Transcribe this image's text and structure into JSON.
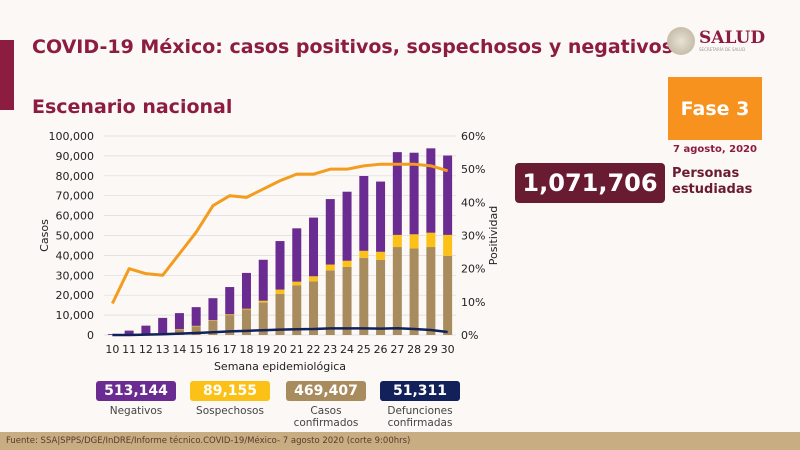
{
  "header": {
    "title": "COVID-19 México: casos positivos, sospechosos y negativos",
    "subtitle": "Escenario nacional"
  },
  "logo": {
    "text": "SALUD",
    "subtext": "SECRETARÍA DE SALUD"
  },
  "phase": {
    "label": "Fase 3",
    "date": "7 agosto, 2020",
    "color": "#f7921e"
  },
  "studied": {
    "value": "1,071,706",
    "label_line1": "Personas",
    "label_line2": "estudiadas"
  },
  "stats": [
    {
      "value": "513,144",
      "label": "Negativos",
      "color": "#6b2c91"
    },
    {
      "value": "89,155",
      "label": "Sospechosos",
      "color": "#fcc116"
    },
    {
      "value": "469,407",
      "label": "Casos confirmados",
      "color": "#a88c5e"
    },
    {
      "value": "51,311",
      "label": "Defunciones confirmadas",
      "color": "#13215a"
    }
  ],
  "footer": "Fuente: SSA|SPPS/DGE/InDRE/Informe técnico.COVID-19/México- 7 agosto 2020 (corte 9:00hrs)",
  "chart_data": {
    "type": "bar",
    "stacked": true,
    "xlabel": "Semana epidemiológica",
    "ylabel": "Casos",
    "y2label": "Positividad",
    "ylim": [
      0,
      100000
    ],
    "y2lim": [
      0,
      60
    ],
    "yticks": [
      "0",
      "10,000",
      "20,000",
      "30,000",
      "40,000",
      "50,000",
      "60,000",
      "70,000",
      "80,000",
      "90,000",
      "100,000"
    ],
    "y2ticks": [
      "0%",
      "10%",
      "20%",
      "30%",
      "40%",
      "50%",
      "60%"
    ],
    "grid": true,
    "categories": [
      "10",
      "11",
      "12",
      "13",
      "14",
      "15",
      "16",
      "17",
      "18",
      "19",
      "20",
      "21",
      "22",
      "23",
      "24",
      "25",
      "26",
      "27",
      "28",
      "29",
      "30"
    ],
    "series": [
      {
        "name": "Casos confirmados",
        "type": "bar",
        "color": "#a88c5e",
        "values": [
          100,
          200,
          400,
          800,
          2800,
          4300,
          7100,
          10000,
          12800,
          16400,
          20700,
          25000,
          27000,
          32500,
          34200,
          38800,
          37800,
          44200,
          43500,
          44200,
          39800
        ]
      },
      {
        "name": "Sospechosos",
        "type": "bar",
        "color": "#fcc116",
        "values": [
          0,
          0,
          50,
          100,
          200,
          300,
          300,
          400,
          400,
          800,
          2100,
          1800,
          2500,
          2900,
          3100,
          3500,
          4000,
          6100,
          7100,
          7200,
          10500
        ]
      },
      {
        "name": "Negativos",
        "type": "bar",
        "color": "#6b2c91",
        "values": [
          400,
          2000,
          4250,
          7700,
          8000,
          9400,
          11100,
          13700,
          18000,
          20600,
          24400,
          26800,
          29500,
          32900,
          34700,
          37600,
          35300,
          41600,
          41000,
          42400,
          39900
        ]
      },
      {
        "name": "Defunciones confirmadas",
        "type": "line",
        "axis": "left",
        "color": "#13215a",
        "values": [
          0,
          0,
          200,
          400,
          700,
          1000,
          1400,
          1800,
          2100,
          2400,
          2700,
          2900,
          3000,
          3300,
          3300,
          3300,
          3200,
          3400,
          3000,
          2500,
          1500
        ]
      },
      {
        "name": "Positividad",
        "type": "line",
        "axis": "right",
        "unit": "%",
        "color": "#f39c1e",
        "values": [
          9.5,
          20,
          18.5,
          18,
          24.5,
          31,
          39,
          42,
          41.5,
          44,
          46.5,
          48.5,
          48.5,
          50,
          50,
          51,
          51.5,
          51.5,
          51.5,
          51,
          49.5
        ]
      }
    ]
  }
}
